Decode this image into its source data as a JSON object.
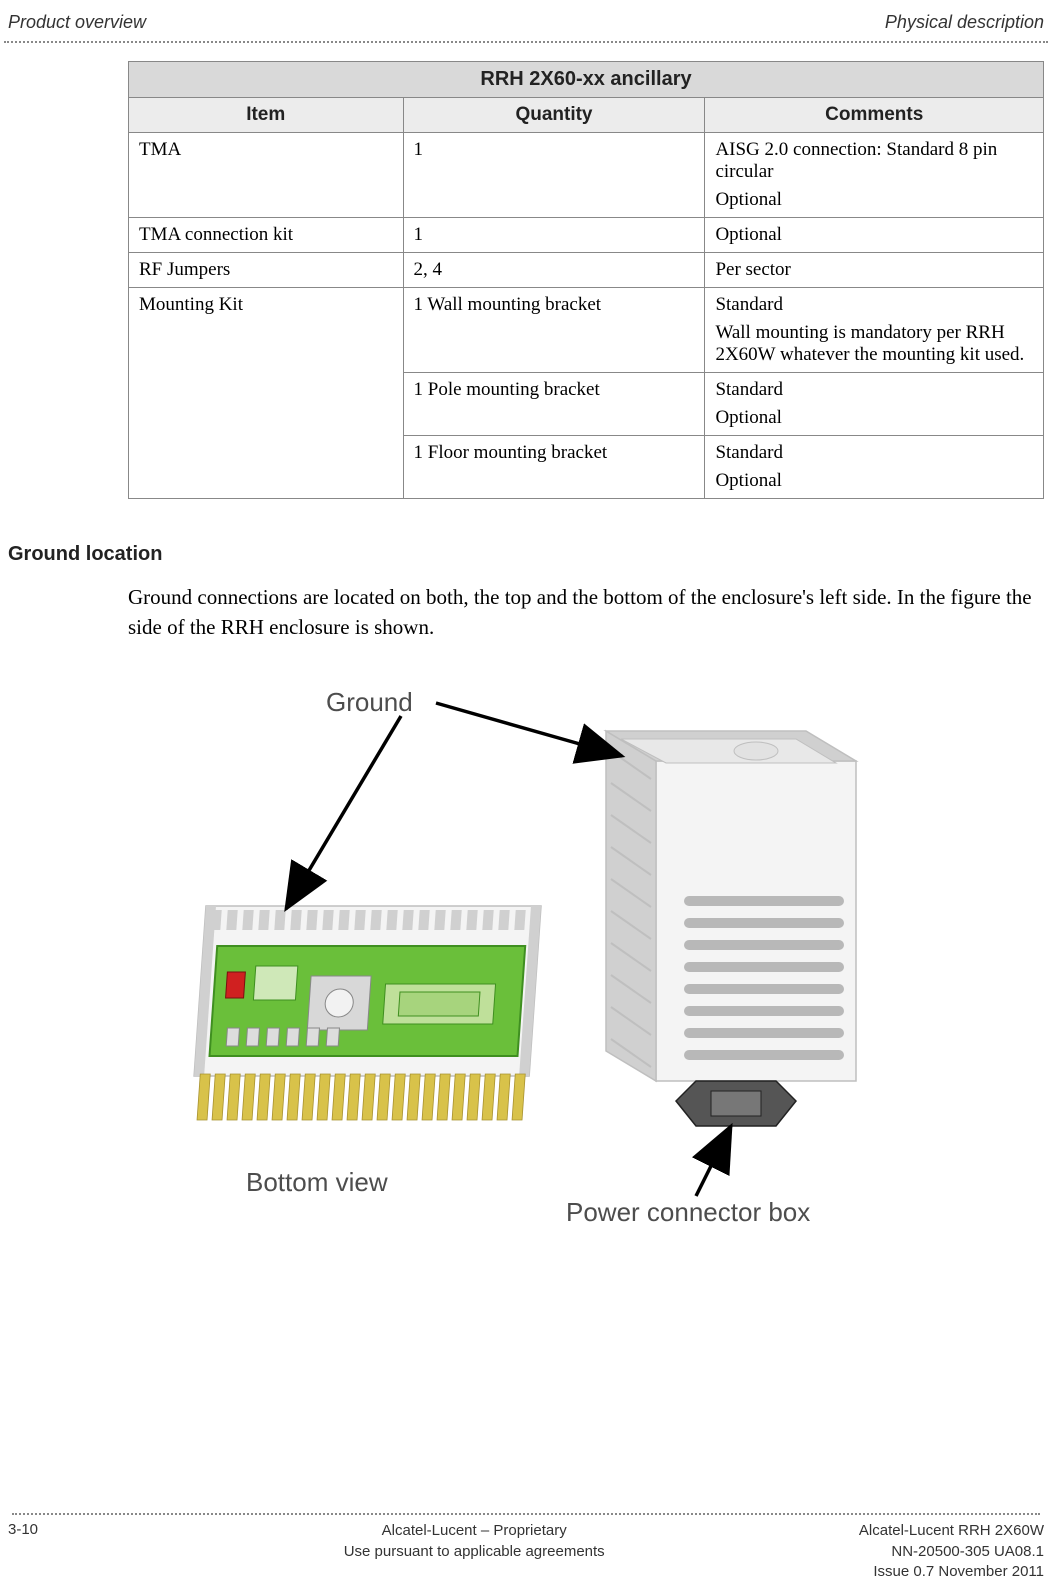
{
  "header": {
    "left": "Product overview",
    "right": "Physical description"
  },
  "table": {
    "title": "RRH 2X60-xx ancillary",
    "columns": [
      "Item",
      "Quantity",
      "Comments"
    ],
    "rows": {
      "tma": {
        "item": "TMA",
        "qty": "1",
        "comment_line1": "AISG 2.0 connection: Standard 8 pin circular",
        "comment_line2": "Optional"
      },
      "tma_kit": {
        "item": "TMA connection kit",
        "qty": "1",
        "comment": "Optional"
      },
      "rf": {
        "item": "RF Jumpers",
        "qty": "2, 4",
        "comment": "Per sector"
      },
      "mount": {
        "item": "Mounting Kit",
        "wall_qty": "1 Wall mounting bracket",
        "wall_c1": "Standard",
        "wall_c2": "Wall mounting is mandatory per RRH 2X60W whatever the mounting kit used.",
        "pole_qty": "1 Pole mounting bracket",
        "pole_c1": "Standard",
        "pole_c2": "Optional",
        "floor_qty": "1 Floor mounting bracket",
        "floor_c1": "Standard",
        "floor_c2": "Optional"
      }
    }
  },
  "section": {
    "heading": "Ground location",
    "body": "Ground connections are located on both, the top and the bottom of the enclosure's left side. In the figure the side of the RRH enclosure is shown."
  },
  "figure": {
    "labels": {
      "ground": "Ground",
      "bottom_view": "Bottom view",
      "power_box": "Power connector  box"
    },
    "colors": {
      "pcb": "#6abf3a",
      "pcb_edge": "#3f8f20",
      "gold": "#d8c24a",
      "enclosure_light": "#f4f4f4",
      "enclosure_shade": "#d0d0d0",
      "enclosure_dark": "#bfbfbf",
      "vent_slot": "#b8b8b8",
      "red_dot": "#d02020",
      "text": "#4d4d4d",
      "arrow": "#000000"
    }
  },
  "footer": {
    "page": "3-10",
    "center1": "Alcatel-Lucent – Proprietary",
    "center2": "Use pursuant to applicable agreements",
    "right1": "Alcatel-Lucent RRH 2X60W",
    "right2": "NN-20500-305 UA08.1",
    "right3": "Issue 0.7   November 2011"
  }
}
